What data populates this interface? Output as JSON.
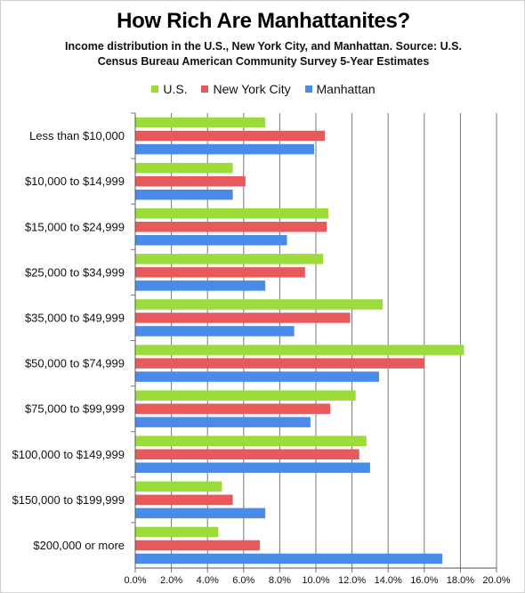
{
  "chart_data": {
    "type": "bar",
    "orientation": "horizontal",
    "title": "How Rich Are Manhattanites?",
    "subtitle": "Income distribution in the U.S., New York City, and Manhattan. Source: U.S. Census Bureau American Community Survey 5-Year Estimates",
    "categories": [
      "Less than $10,000",
      "$10,000 to $14,999",
      "$15,000 to $24,999",
      "$25,000 to $34,999",
      "$35,000 to $49,999",
      "$50,000 to $74,999",
      "$75,000 to $99,999",
      "$100,000 to $149,999",
      "$150,000 to $199,999",
      "$200,000 or more"
    ],
    "series": [
      {
        "name": "U.S.",
        "color": "#9bdc3a",
        "values": [
          7.2,
          5.4,
          10.7,
          10.4,
          13.7,
          18.2,
          12.2,
          12.8,
          4.8,
          4.6
        ]
      },
      {
        "name": "New York City",
        "color": "#e8595c",
        "values": [
          10.5,
          6.1,
          10.6,
          9.4,
          11.9,
          16.0,
          10.8,
          12.4,
          5.4,
          6.9
        ]
      },
      {
        "name": "Manhattan",
        "color": "#4a8ae8",
        "values": [
          9.9,
          5.4,
          8.4,
          7.2,
          8.8,
          13.5,
          9.7,
          13.0,
          7.2,
          17.0
        ]
      }
    ],
    "xlim": [
      0,
      20
    ],
    "x_ticks": [
      "0.0%",
      "2.0%",
      "4.0%",
      "6.0%",
      "8.0%",
      "10.0%",
      "12.0%",
      "14.0%",
      "16.0%",
      "18.0%",
      "20.0%"
    ],
    "xlabel": "",
    "ylabel": "",
    "grid": true,
    "legend_position": "top-center"
  }
}
